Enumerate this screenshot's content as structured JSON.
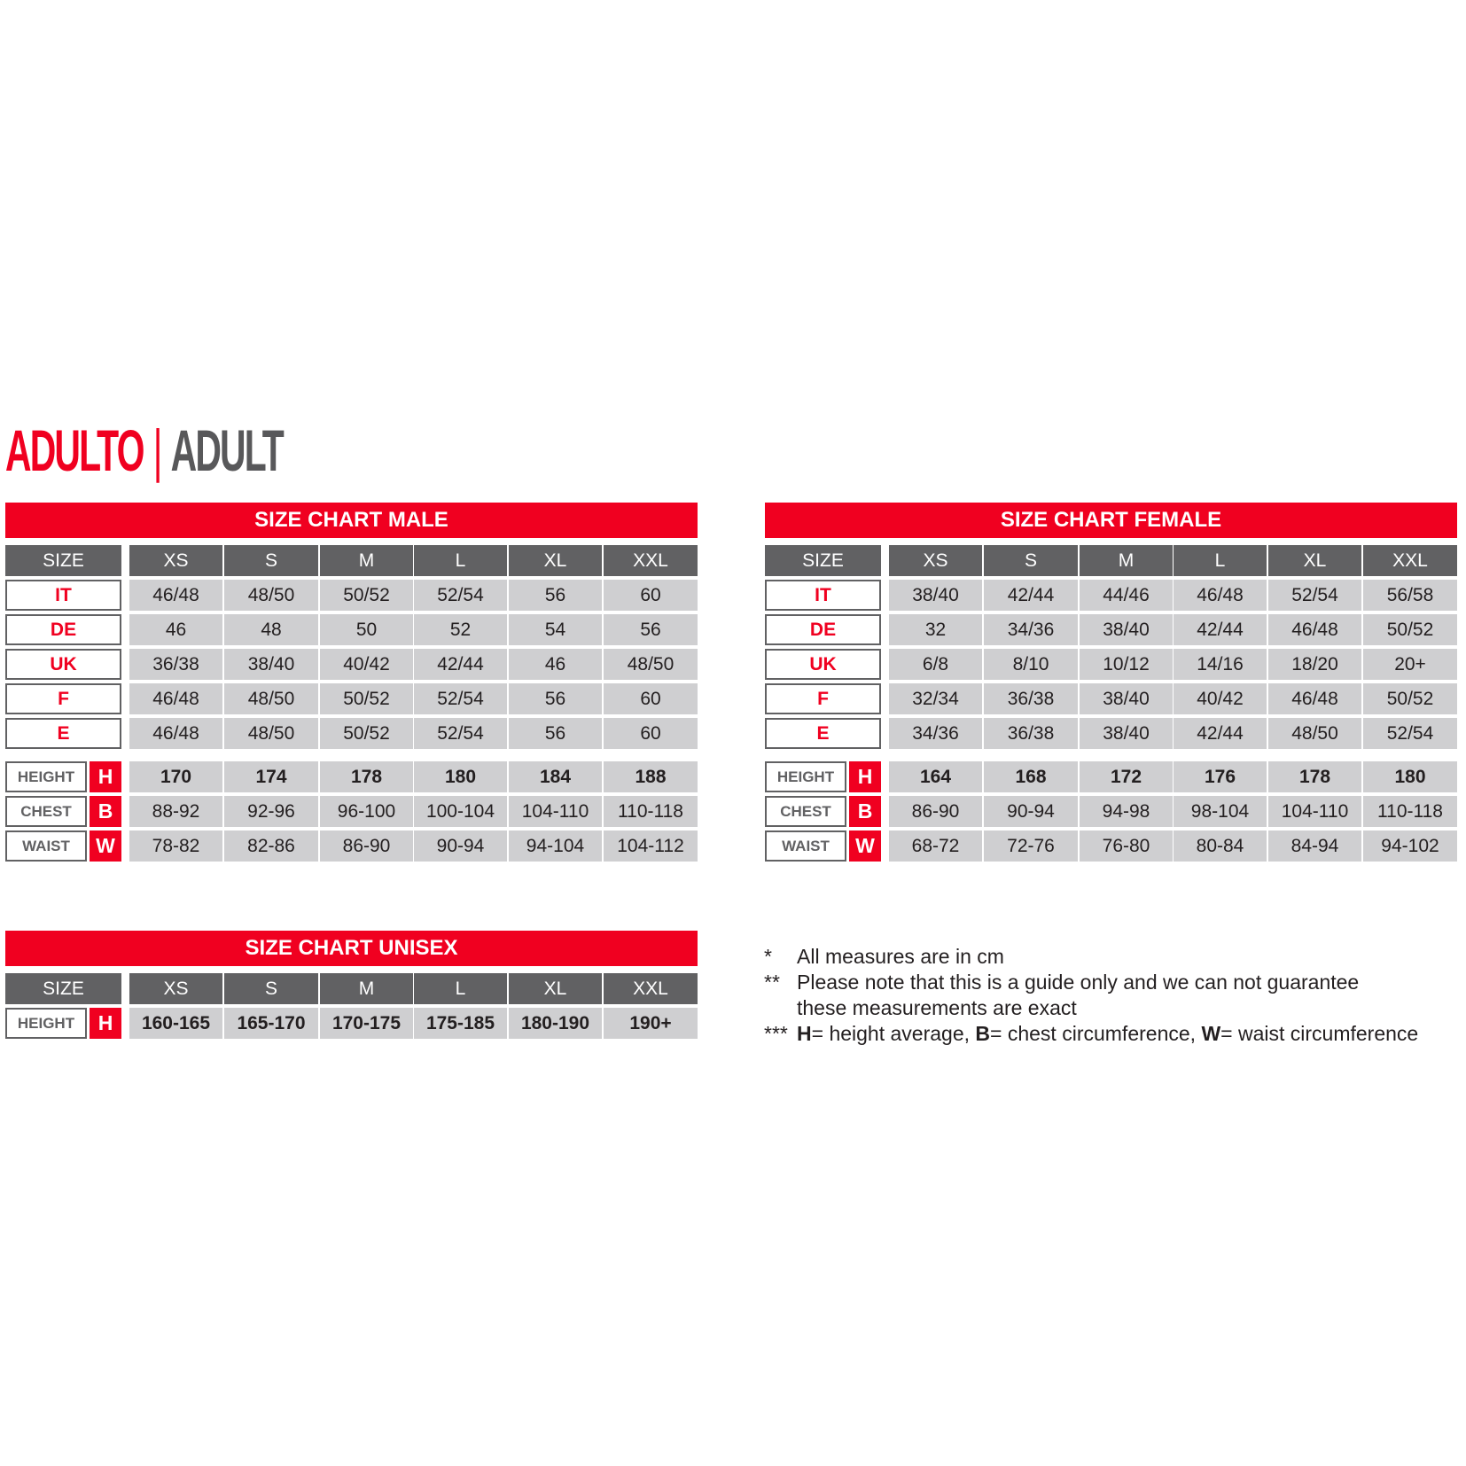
{
  "title": {
    "it": "ADULTO",
    "separator": "|",
    "en": "ADULT"
  },
  "colors": {
    "accent_red": "#f00020",
    "header_grey": "#616163",
    "cell_grey": "#cfcfd1"
  },
  "charts": {
    "male": {
      "title": "SIZE CHART MALE",
      "size_label": "SIZE",
      "sizes": [
        "XS",
        "S",
        "M",
        "L",
        "XL",
        "XXL"
      ],
      "systems": [
        {
          "label": "IT",
          "values": [
            "46/48",
            "48/50",
            "50/52",
            "52/54",
            "56",
            "60"
          ]
        },
        {
          "label": "DE",
          "values": [
            "46",
            "48",
            "50",
            "52",
            "54",
            "56"
          ]
        },
        {
          "label": "UK",
          "values": [
            "36/38",
            "38/40",
            "40/42",
            "42/44",
            "46",
            "48/50"
          ]
        },
        {
          "label": "F",
          "values": [
            "46/48",
            "48/50",
            "50/52",
            "52/54",
            "56",
            "60"
          ]
        },
        {
          "label": "E",
          "values": [
            "46/48",
            "48/50",
            "50/52",
            "52/54",
            "56",
            "60"
          ]
        }
      ],
      "measures": [
        {
          "label": "HEIGHT",
          "letter": "H",
          "values": [
            "170",
            "174",
            "178",
            "180",
            "184",
            "188"
          ]
        },
        {
          "label": "CHEST",
          "letter": "B",
          "values": [
            "88-92",
            "92-96",
            "96-100",
            "100-104",
            "104-110",
            "110-118"
          ]
        },
        {
          "label": "WAIST",
          "letter": "W",
          "values": [
            "78-82",
            "82-86",
            "86-90",
            "90-94",
            "94-104",
            "104-112"
          ]
        }
      ]
    },
    "female": {
      "title": "SIZE CHART FEMALE",
      "size_label": "SIZE",
      "sizes": [
        "XS",
        "S",
        "M",
        "L",
        "XL",
        "XXL"
      ],
      "systems": [
        {
          "label": "IT",
          "values": [
            "38/40",
            "42/44",
            "44/46",
            "46/48",
            "52/54",
            "56/58"
          ]
        },
        {
          "label": "DE",
          "values": [
            "32",
            "34/36",
            "38/40",
            "42/44",
            "46/48",
            "50/52"
          ]
        },
        {
          "label": "UK",
          "values": [
            "6/8",
            "8/10",
            "10/12",
            "14/16",
            "18/20",
            "20+"
          ]
        },
        {
          "label": "F",
          "values": [
            "32/34",
            "36/38",
            "38/40",
            "40/42",
            "46/48",
            "50/52"
          ]
        },
        {
          "label": "E",
          "values": [
            "34/36",
            "36/38",
            "38/40",
            "42/44",
            "48/50",
            "52/54"
          ]
        }
      ],
      "measures": [
        {
          "label": "HEIGHT",
          "letter": "H",
          "values": [
            "164",
            "168",
            "172",
            "176",
            "178",
            "180"
          ]
        },
        {
          "label": "CHEST",
          "letter": "B",
          "values": [
            "86-90",
            "90-94",
            "94-98",
            "98-104",
            "104-110",
            "110-118"
          ]
        },
        {
          "label": "WAIST",
          "letter": "W",
          "values": [
            "68-72",
            "72-76",
            "76-80",
            "80-84",
            "84-94",
            "94-102"
          ]
        }
      ]
    },
    "unisex": {
      "title": "SIZE CHART UNISEX",
      "size_label": "SIZE",
      "sizes": [
        "XS",
        "S",
        "M",
        "L",
        "XL",
        "XXL"
      ],
      "systems": [],
      "measures": [
        {
          "label": "HEIGHT",
          "letter": "H",
          "values": [
            "160-165",
            "165-170",
            "170-175",
            "175-185",
            "180-190",
            "190+"
          ]
        }
      ]
    }
  },
  "notes": [
    {
      "marker": "*",
      "text": "All measures are in cm"
    },
    {
      "marker": "**",
      "text": "Please note that this is a guide only and we can not guarantee"
    },
    {
      "marker": "",
      "text": "these measurements are exact"
    },
    {
      "marker": "***",
      "parts": [
        {
          "b": "H",
          "t": "= height average, "
        },
        {
          "b": "B",
          "t": "= chest circumference, "
        },
        {
          "b": "W",
          "t": "= waist circumference"
        }
      ]
    }
  ]
}
